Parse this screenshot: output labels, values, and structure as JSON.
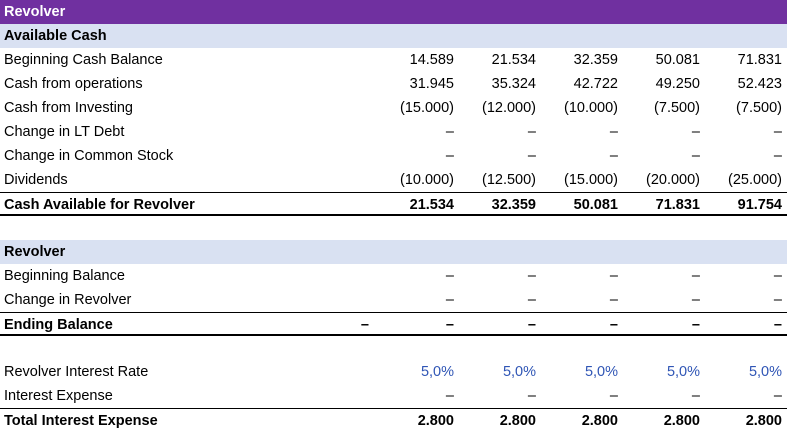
{
  "title": "Revolver",
  "available_cash": {
    "header": "Available Cash",
    "rows": [
      {
        "label": "Beginning Cash Balance",
        "values": [
          "14.589",
          "21.534",
          "32.359",
          "50.081",
          "71.831"
        ]
      },
      {
        "label": "Cash from operations",
        "values": [
          "31.945",
          "35.324",
          "42.722",
          "49.250",
          "52.423"
        ]
      },
      {
        "label": "Cash from Investing",
        "values": [
          "(15.000)",
          "(12.000)",
          "(10.000)",
          "(7.500)",
          "(7.500)"
        ]
      },
      {
        "label": "Change in LT Debt",
        "values": [
          "–",
          "–",
          "–",
          "–",
          "–"
        ]
      },
      {
        "label": "Change in Common Stock",
        "values": [
          "–",
          "–",
          "–",
          "–",
          "–"
        ]
      },
      {
        "label": "Dividends",
        "values": [
          "(10.000)",
          "(12.500)",
          "(15.000)",
          "(20.000)",
          "(25.000)"
        ]
      }
    ],
    "total": {
      "label": "Cash Available for Revolver",
      "values": [
        "21.534",
        "32.359",
        "50.081",
        "71.831",
        "91.754"
      ]
    }
  },
  "revolver": {
    "header": "Revolver",
    "rows": [
      {
        "label": "Beginning Balance",
        "values": [
          "–",
          "–",
          "–",
          "–",
          "–"
        ]
      },
      {
        "label": "Change in Revolver",
        "values": [
          "–",
          "–",
          "–",
          "–",
          "–"
        ]
      }
    ],
    "ending": {
      "label": "Ending Balance",
      "opening": "–",
      "values": [
        "–",
        "–",
        "–",
        "–",
        "–"
      ]
    }
  },
  "interest": {
    "rate": {
      "label": "Revolver Interest Rate",
      "values": [
        "5,0%",
        "5,0%",
        "5,0%",
        "5,0%",
        "5,0%"
      ]
    },
    "expense": {
      "label": "Interest Expense",
      "values": [
        "–",
        "–",
        "–",
        "–",
        "–"
      ]
    },
    "total": {
      "label": "Total Interest Expense",
      "values": [
        "2.800",
        "2.800",
        "2.800",
        "2.800",
        "2.800"
      ]
    }
  },
  "colors": {
    "title_bg": "#7030a0",
    "section_bg": "#d9e1f2",
    "input_blue": "#2f55b5"
  }
}
